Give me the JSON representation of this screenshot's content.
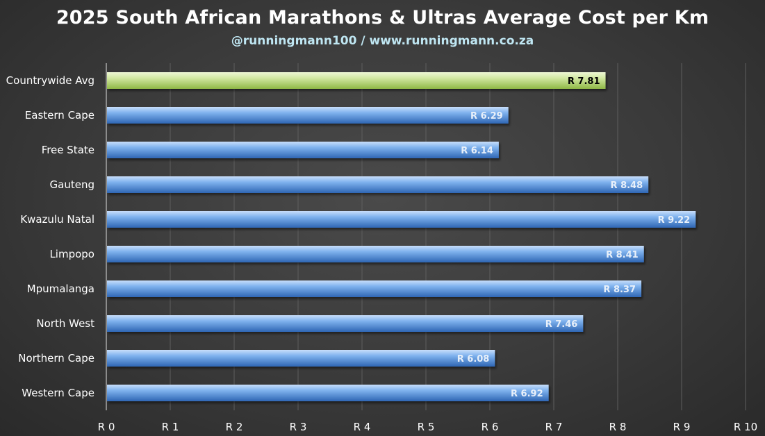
{
  "chart_data": {
    "type": "bar",
    "orientation": "horizontal",
    "title": "2025 South African Marathons & Ultras Average Cost per Km",
    "subtitle": "@runningmann100 / www.runningmann.co.za",
    "categories": [
      "Countrywide Avg",
      "Eastern Cape",
      "Free State",
      "Gauteng",
      "Kwazulu Natal",
      "Limpopo",
      "Mpumalanga",
      "North West",
      "Northern Cape",
      "Western Cape"
    ],
    "values": [
      7.81,
      6.29,
      6.14,
      8.48,
      9.22,
      8.41,
      8.37,
      7.46,
      6.08,
      6.92
    ],
    "data_labels": [
      "R 7.81",
      "R 6.29",
      "R 6.14",
      "R 8.48",
      "R 9.22",
      "R 8.41",
      "R 8.37",
      "R 7.46",
      "R 6.08",
      "R 6.92"
    ],
    "highlight_index": 0,
    "xlim": [
      0,
      10
    ],
    "x_ticks": [
      "R 0",
      "R 1",
      "R 2",
      "R 3",
      "R 4",
      "R 5",
      "R 6",
      "R 7",
      "R 8",
      "R 9",
      "R 10"
    ],
    "grid": true,
    "colors": {
      "highlight_top": "#d2e8a2",
      "highlight_bottom": "#8fb846",
      "bar_top": "#7fb2ee",
      "bar_bottom": "#2f66b4",
      "grid": "#5e5e5e",
      "highlight_label": "#000000",
      "bar_label": "#e8f0fa"
    }
  }
}
